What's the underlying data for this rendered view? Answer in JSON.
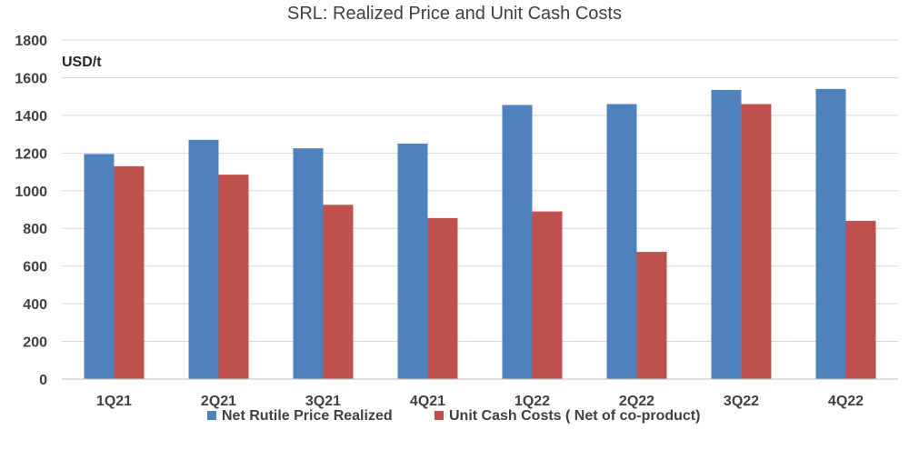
{
  "chart_data": {
    "type": "bar",
    "title": "SRL: Realized Price and Unit Cash Costs",
    "unit_label": "USD/t",
    "categories": [
      "1Q21",
      "2Q21",
      "3Q21",
      "4Q21",
      "1Q22",
      "2Q22",
      "3Q22",
      "4Q22"
    ],
    "series": [
      {
        "name": "Net Rutile Price Realized",
        "color": "#4f81bd",
        "values": [
          1195,
          1270,
          1225,
          1250,
          1455,
          1460,
          1535,
          1540
        ]
      },
      {
        "name": "Unit Cash Costs ( Net of co-product)",
        "color": "#c0504d",
        "values": [
          1130,
          1085,
          925,
          855,
          890,
          675,
          1460,
          840
        ]
      }
    ],
    "ylim": [
      0,
      1800
    ],
    "yticks": [
      "0",
      "200",
      "400",
      "600",
      "800",
      "1000",
      "1200",
      "1400",
      "1600",
      "1800"
    ],
    "grid": true,
    "legend_position": "bottom"
  }
}
